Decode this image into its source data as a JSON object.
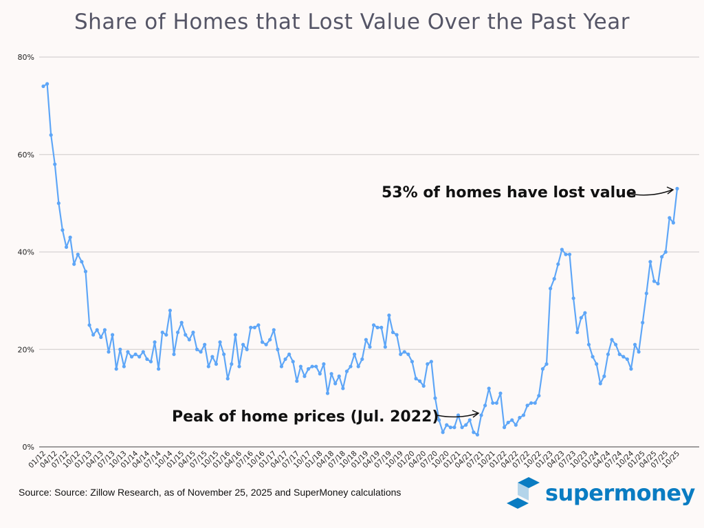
{
  "chart_data": {
    "type": "line",
    "title": "Share of Homes that Lost Value Over the Past Year",
    "xlabel": "",
    "ylabel": "",
    "ylim": [
      0,
      80
    ],
    "yticks": [
      "0%",
      "20%",
      "40%",
      "60%",
      "80%"
    ],
    "ytick_values": [
      0,
      20,
      40,
      60,
      80
    ],
    "grid": true,
    "line_color": "#5ea6f7",
    "start": "01/12",
    "xtick_labels": [
      "01/12",
      "04/12",
      "07/12",
      "10/12",
      "01/13",
      "04/13",
      "07/13",
      "10/13",
      "01/14",
      "04/14",
      "07/14",
      "10/14",
      "01/15",
      "04/15",
      "07/15",
      "10/15",
      "01/16",
      "04/16",
      "07/16",
      "10/16",
      "01/17",
      "04/17",
      "07/17",
      "10/17",
      "01/18",
      "04/18",
      "07/18",
      "10/18",
      "01/19",
      "04/19",
      "07/19",
      "10/19",
      "01/20",
      "04/20",
      "07/20",
      "10/20",
      "01/21",
      "04/21",
      "07/21",
      "10/21",
      "01/22",
      "04/22",
      "07/22",
      "10/22",
      "01/23",
      "04/23",
      "07/23",
      "10/23",
      "01/24",
      "04/24",
      "07/24",
      "10/24",
      "01/25",
      "04/25",
      "07/25",
      "10/25"
    ],
    "series": [
      {
        "name": "Share of homes that lost value (%)",
        "values": [
          74,
          74.5,
          64,
          58,
          50,
          44.5,
          41,
          43,
          37.5,
          39.5,
          38,
          36,
          25,
          23,
          24,
          22.5,
          24,
          19.5,
          23,
          16,
          20,
          16.5,
          19.5,
          18.5,
          19,
          18.5,
          19.5,
          18,
          17.5,
          21.5,
          16,
          23.5,
          23,
          28,
          19,
          23.5,
          25.5,
          23,
          22,
          23.5,
          20,
          19.5,
          21,
          16.5,
          18.5,
          17,
          21.5,
          19,
          14,
          17,
          23,
          16.5,
          21,
          20,
          24.5,
          24.5,
          25,
          21.5,
          21,
          22,
          24,
          20,
          16.5,
          18,
          19,
          17.5,
          13.5,
          16.5,
          14.5,
          16,
          16.5,
          16.5,
          15,
          17,
          11,
          15,
          13,
          14.5,
          12,
          15.5,
          16.5,
          19,
          16.5,
          18,
          22,
          20.5,
          25,
          24.5,
          24.5,
          20.5,
          27,
          23.5,
          23,
          19,
          19.5,
          19,
          17.5,
          14,
          13.5,
          12.5,
          17,
          17.5,
          10,
          5.5,
          3,
          4.5,
          4,
          4,
          6.5,
          4,
          4.5,
          5.5,
          3,
          2.5,
          6.5,
          8.5,
          12,
          9,
          9,
          11,
          4,
          5,
          5.5,
          4.5,
          6,
          6.5,
          8.5,
          9,
          9,
          10.5,
          16,
          17,
          32.5,
          34.5,
          37.5,
          40.5,
          39.5,
          39.5,
          30.5,
          23.5,
          26.5,
          27.5,
          21,
          18.5,
          17,
          13,
          14.5,
          19,
          22,
          21,
          19,
          18.5,
          18,
          16,
          21,
          19.5,
          25.5,
          31.5,
          38,
          34,
          33.5,
          39,
          40,
          47,
          46,
          53
        ]
      }
    ],
    "annotations": [
      {
        "text": "53% of homes have lost value",
        "target": "10/25"
      },
      {
        "text": "Peak of home prices (Jul. 2022)",
        "target": "07/22"
      }
    ]
  },
  "source": "Source: Source: Zillow Research, as of November 25, 2025 and SuperMoney calculations",
  "logo": {
    "text": "supermoney",
    "color": "#0a7cc2"
  }
}
